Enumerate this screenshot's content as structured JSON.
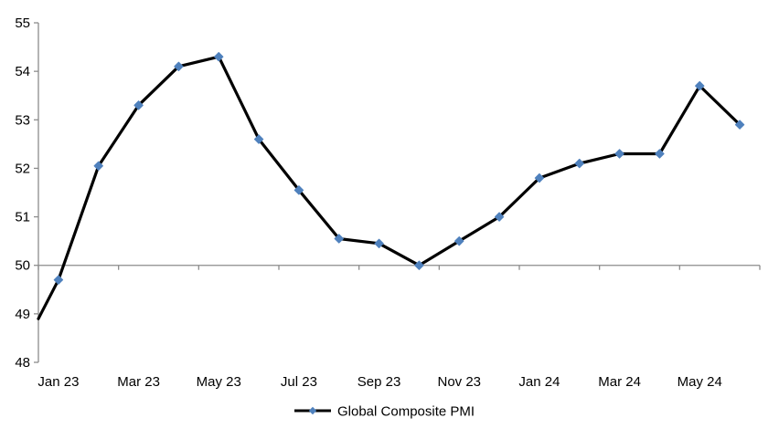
{
  "chart_data": {
    "type": "line",
    "title": "",
    "categories": [
      "Jan 23",
      "Feb 23",
      "Mar 23",
      "Apr 23",
      "May 23",
      "Jun 23",
      "Jul 23",
      "Aug 23",
      "Sep 23",
      "Oct 23",
      "Nov 23",
      "Dec 23",
      "Jan 24",
      "Feb 24",
      "Mar 24",
      "Apr 24",
      "May 24",
      "Jun 24"
    ],
    "series": [
      {
        "name": "Global Composite PMI",
        "values": [
          49.7,
          52.05,
          53.3,
          54.1,
          54.3,
          52.6,
          51.55,
          50.55,
          50.45,
          50.0,
          50.5,
          51.0,
          51.8,
          52.1,
          52.3,
          52.3,
          53.7,
          52.9
        ],
        "line_color": "#000000",
        "marker": "diamond",
        "marker_color": "#4F81BD"
      }
    ],
    "line_enters_left_edge_at_value": 48.9,
    "ylim": [
      48,
      55
    ],
    "ytick_interval": 1,
    "ytick_labels": [
      "55",
      "54",
      "53",
      "52",
      "51",
      "50",
      "49",
      "48"
    ],
    "x_tick_labels": [
      "Jan 23",
      "Mar 23",
      "May 23",
      "Jul 23",
      "Sep 23",
      "Nov 23",
      "Jan 24",
      "Mar 24",
      "May 24"
    ],
    "x_label_every_n_categories": 2,
    "category_axis_crosses_at": 50,
    "grid": "off",
    "legend_position": "bottom-center",
    "colors": {
      "axis": "#8C8C8C",
      "text": "#000000",
      "background": "#FFFFFF"
    }
  }
}
